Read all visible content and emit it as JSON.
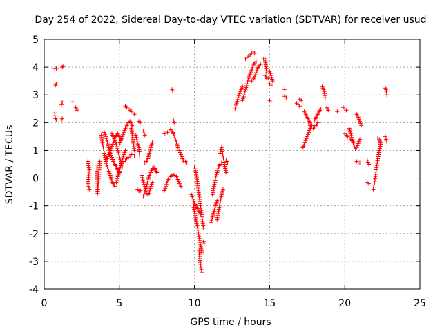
{
  "chart_data": {
    "type": "scatter",
    "title": "Day 254 of 2022, Sidereal Day-to-day VTEC variation (SDTVAR) for receiver usud",
    "xlabel": "GPS time / hours",
    "ylabel": "SDTVAR / TECUs",
    "xlim": [
      0,
      25
    ],
    "ylim": [
      -4,
      5
    ],
    "xticks": [
      0,
      5,
      10,
      15,
      20,
      25
    ],
    "yticks": [
      -4,
      -3,
      -2,
      -1,
      0,
      1,
      2,
      3,
      4,
      5
    ],
    "xtick_labels": [
      "0",
      "5",
      "10",
      "15",
      "20",
      "25"
    ],
    "ytick_labels": [
      "-4",
      "-3",
      "-2",
      "-1",
      "0",
      "1",
      "2",
      "3",
      "4",
      "5"
    ],
    "grid": true,
    "marker": "+",
    "color": "#ff0000",
    "segments": [
      {
        "x": [
          0.7,
          0.8
        ],
        "y": [
          3.95,
          3.95
        ]
      },
      {
        "x": [
          1.2,
          1.25
        ],
        "y": [
          4.0,
          4.02
        ]
      },
      {
        "x": [
          0.75,
          0.8
        ],
        "y": [
          3.35,
          3.4
        ]
      },
      {
        "x": [
          0.7,
          0.72,
          0.75,
          0.8
        ],
        "y": [
          2.35,
          2.25,
          2.15,
          2.1
        ]
      },
      {
        "x": [
          1.15,
          1.2
        ],
        "y": [
          2.65,
          2.75
        ]
      },
      {
        "x": [
          1.15,
          1.2
        ],
        "y": [
          2.1,
          2.15
        ]
      },
      {
        "x": [
          1.9
        ],
        "y": [
          2.75
        ]
      },
      {
        "x": [
          2.1,
          2.15,
          2.2
        ],
        "y": [
          2.55,
          2.5,
          2.45
        ]
      },
      {
        "x": [
          2.9,
          2.95,
          3.0,
          2.95,
          2.9,
          2.95,
          3.0
        ],
        "y": [
          0.6,
          0.45,
          0.3,
          -0.05,
          -0.2,
          -0.3,
          -0.4
        ]
      },
      {
        "x": [
          3.5,
          3.55,
          3.7
        ],
        "y": [
          0.4,
          -0.55,
          0.6
        ]
      },
      {
        "x": [
          3.8,
          3.9,
          4.0,
          4.1,
          4.2,
          4.3,
          4.4,
          4.5,
          4.6,
          4.7
        ],
        "y": [
          1.55,
          1.2,
          0.9,
          0.6,
          0.4,
          0.25,
          0.1,
          -0.1,
          -0.2,
          -0.3
        ]
      },
      {
        "x": [
          4.0,
          4.1,
          4.2,
          4.3,
          4.4,
          4.5,
          4.6,
          4.7,
          4.8,
          4.9,
          5.0
        ],
        "y": [
          1.65,
          1.5,
          1.3,
          1.1,
          0.9,
          0.75,
          0.6,
          0.5,
          0.4,
          0.3,
          0.2
        ]
      },
      {
        "x": [
          4.1,
          4.2,
          4.3,
          4.4,
          4.5,
          4.6,
          4.7,
          4.8,
          4.9,
          5.0,
          5.1
        ],
        "y": [
          0.6,
          0.7,
          0.85,
          1.0,
          1.15,
          1.3,
          1.45,
          1.55,
          1.6,
          1.5,
          1.4
        ]
      },
      {
        "x": [
          4.5,
          4.6,
          4.7,
          4.8,
          4.9,
          5.0,
          5.1,
          5.2
        ],
        "y": [
          1.6,
          1.5,
          1.35,
          1.2,
          1.0,
          0.8,
          0.6,
          0.4
        ]
      },
      {
        "x": [
          4.8,
          4.9,
          5.0,
          5.1,
          5.2,
          5.3,
          5.4
        ],
        "y": [
          -0.15,
          0.05,
          0.25,
          0.45,
          0.65,
          0.85,
          1.0
        ]
      },
      {
        "x": [
          5.0,
          5.1,
          5.2,
          5.3,
          5.4,
          5.5,
          5.6,
          5.7,
          5.8,
          5.9
        ],
        "y": [
          1.2,
          1.35,
          1.5,
          1.65,
          1.8,
          1.9,
          2.0,
          2.05,
          1.95,
          1.85
        ]
      },
      {
        "x": [
          5.3,
          5.4,
          5.5,
          5.6,
          5.7,
          5.8,
          5.9,
          6.0
        ],
        "y": [
          0.6,
          0.65,
          0.7,
          0.75,
          0.8,
          0.85,
          0.85,
          0.8
        ]
      },
      {
        "x": [
          5.4,
          5.5,
          5.6,
          5.7,
          5.8,
          5.9,
          6.0
        ],
        "y": [
          2.6,
          2.55,
          2.5,
          2.45,
          2.4,
          2.35,
          2.3
        ]
      },
      {
        "x": [
          5.8,
          5.85,
          5.9,
          5.95,
          6.0
        ],
        "y": [
          1.8,
          1.6,
          1.4,
          1.2,
          1.0
        ]
      },
      {
        "x": [
          6.1,
          6.2,
          6.3,
          6.35
        ],
        "y": [
          1.55,
          1.3,
          1.1,
          0.8
        ]
      },
      {
        "x": [
          6.2,
          6.3,
          6.35,
          6.4
        ],
        "y": [
          -0.4,
          -0.45,
          -0.5,
          -0.45
        ]
      },
      {
        "x": [
          6.3,
          6.4
        ],
        "y": [
          2.05,
          2.0
        ]
      },
      {
        "x": [
          6.5,
          6.6,
          6.7,
          6.8,
          6.9,
          7.0,
          7.1,
          7.2
        ],
        "y": [
          0.1,
          -0.15,
          -0.3,
          -0.55,
          -0.6,
          -0.5,
          -0.3,
          -0.15
        ]
      },
      {
        "x": [
          6.6,
          6.7,
          6.8,
          6.9,
          7.0,
          7.1,
          7.2,
          7.3,
          7.4,
          7.5
        ],
        "y": [
          -0.65,
          -0.5,
          -0.3,
          -0.1,
          0.1,
          0.2,
          0.35,
          0.4,
          0.3,
          0.2
        ]
      },
      {
        "x": [
          6.7,
          6.8,
          6.9,
          7.0,
          7.1,
          7.2
        ],
        "y": [
          0.55,
          0.6,
          0.7,
          0.9,
          1.1,
          1.3
        ]
      },
      {
        "x": [
          6.6,
          6.7
        ],
        "y": [
          1.7,
          1.55
        ]
      },
      {
        "x": [
          8.0,
          8.1,
          8.2,
          8.3,
          8.4,
          8.5,
          8.6,
          8.7,
          8.8,
          8.9
        ],
        "y": [
          1.6,
          1.62,
          1.65,
          1.7,
          1.75,
          1.7,
          1.6,
          1.45,
          1.3,
          1.1
        ]
      },
      {
        "x": [
          8.0,
          8.1,
          8.2,
          8.3,
          8.4,
          8.5,
          8.6,
          8.7,
          8.8,
          8.9,
          9.0,
          9.1
        ],
        "y": [
          -0.45,
          -0.3,
          -0.1,
          0.0,
          0.05,
          0.1,
          0.12,
          0.1,
          0.05,
          -0.05,
          -0.2,
          -0.3
        ]
      },
      {
        "x": [
          8.5,
          8.55
        ],
        "y": [
          3.2,
          3.15
        ]
      },
      {
        "x": [
          8.6,
          8.65,
          8.7
        ],
        "y": [
          2.1,
          2.0,
          1.95
        ]
      },
      {
        "x": [
          9.0,
          9.1,
          9.2,
          9.3
        ],
        "y": [
          1.0,
          0.85,
          0.7,
          0.6
        ]
      },
      {
        "x": [
          9.4,
          9.5
        ],
        "y": [
          0.6,
          0.55
        ]
      },
      {
        "x": [
          9.8,
          9.9,
          10.0,
          10.1,
          10.2,
          10.3,
          10.4
        ],
        "y": [
          -0.6,
          -0.75,
          -0.9,
          -1.0,
          -1.1,
          -1.2,
          -1.3
        ]
      },
      {
        "x": [
          9.9,
          10.0,
          10.1,
          10.2,
          10.3,
          10.4,
          10.5
        ],
        "y": [
          -0.9,
          -1.2,
          -1.5,
          -1.8,
          -2.1,
          -2.4,
          -2.7
        ]
      },
      {
        "x": [
          10.0,
          10.1,
          10.2,
          10.3,
          10.4,
          10.5,
          10.6
        ],
        "y": [
          0.4,
          0.2,
          -0.2,
          -0.6,
          -1.0,
          -1.4,
          -1.8
        ]
      },
      {
        "x": [
          10.3,
          10.35,
          10.4,
          10.45,
          10.5
        ],
        "y": [
          -2.6,
          -2.9,
          -3.1,
          -3.3,
          -3.4
        ]
      },
      {
        "x": [
          10.6,
          10.65
        ],
        "y": [
          -2.3,
          -2.35
        ]
      },
      {
        "x": [
          11.1,
          11.2,
          11.3,
          11.4,
          11.5
        ],
        "y": [
          -1.6,
          -1.4,
          -1.2,
          -1.0,
          -0.8
        ]
      },
      {
        "x": [
          11.2,
          11.3,
          11.4,
          11.5,
          11.6,
          11.7,
          11.8
        ],
        "y": [
          -0.6,
          -0.3,
          0.0,
          0.2,
          0.4,
          0.5,
          0.55
        ]
      },
      {
        "x": [
          11.5,
          11.6,
          11.7,
          11.8,
          11.9
        ],
        "y": [
          -1.5,
          -1.2,
          -0.9,
          -0.6,
          -0.4
        ]
      },
      {
        "x": [
          11.7,
          11.8,
          11.9,
          12.0,
          12.1
        ],
        "y": [
          0.9,
          1.1,
          0.8,
          0.5,
          0.2
        ]
      },
      {
        "x": [
          12.1,
          12.2
        ],
        "y": [
          0.65,
          0.55
        ]
      },
      {
        "x": [
          12.7,
          12.8,
          12.9,
          13.0,
          13.1,
          13.2
        ],
        "y": [
          2.5,
          2.7,
          2.9,
          3.05,
          3.2,
          3.3
        ]
      },
      {
        "x": [
          13.2,
          13.3,
          13.4,
          13.5,
          13.6,
          13.7,
          13.8,
          13.9,
          14.0,
          14.1
        ],
        "y": [
          2.8,
          3.0,
          3.2,
          3.4,
          3.6,
          3.75,
          3.9,
          4.05,
          4.15,
          4.2
        ]
      },
      {
        "x": [
          13.4,
          13.5,
          13.6,
          13.7,
          13.8,
          13.9,
          14.0
        ],
        "y": [
          4.3,
          4.35,
          4.4,
          4.45,
          4.5,
          4.55,
          4.5
        ]
      },
      {
        "x": [
          13.8,
          13.9,
          14.0,
          14.1,
          14.2,
          14.3,
          14.4
        ],
        "y": [
          3.5,
          3.55,
          3.65,
          3.8,
          3.95,
          4.05,
          4.1
        ]
      },
      {
        "x": [
          14.6,
          14.7,
          14.8
        ],
        "y": [
          4.3,
          4.3,
          3.8
        ]
      },
      {
        "x": [
          14.7,
          14.8,
          14.9
        ],
        "y": [
          3.7,
          3.6,
          3.6
        ]
      },
      {
        "x": [
          15.0,
          15.1,
          15.2
        ],
        "y": [
          3.85,
          3.7,
          3.5
        ]
      },
      {
        "x": [
          15.0,
          15.1
        ],
        "y": [
          3.4,
          3.35
        ]
      },
      {
        "x": [
          15.0,
          15.1
        ],
        "y": [
          2.8,
          2.75
        ]
      },
      {
        "x": [
          16.0
        ],
        "y": [
          3.2
        ]
      },
      {
        "x": [
          16.0,
          16.1
        ],
        "y": [
          2.95,
          2.9
        ]
      },
      {
        "x": [
          16.8,
          16.9,
          17.0
        ],
        "y": [
          2.7,
          2.65,
          2.6
        ]
      },
      {
        "x": [
          17.0,
          17.1
        ],
        "y": [
          2.85,
          2.8
        ]
      },
      {
        "x": [
          17.3,
          17.4,
          17.5,
          17.6,
          17.7
        ],
        "y": [
          2.4,
          2.3,
          2.2,
          2.1,
          2.0
        ]
      },
      {
        "x": [
          17.2,
          17.3,
          17.4,
          17.5,
          17.6,
          17.7,
          17.8
        ],
        "y": [
          1.1,
          1.2,
          1.35,
          1.5,
          1.65,
          1.8,
          1.9
        ]
      },
      {
        "x": [
          17.6,
          17.7,
          17.8,
          17.9,
          18.0,
          18.1,
          18.2
        ],
        "y": [
          1.95,
          1.9,
          1.85,
          1.8,
          1.85,
          1.9,
          2.0
        ]
      },
      {
        "x": [
          18.0,
          18.1,
          18.2,
          18.3,
          18.4
        ],
        "y": [
          2.1,
          2.2,
          2.3,
          2.4,
          2.5
        ]
      },
      {
        "x": [
          18.5,
          18.6,
          18.7
        ],
        "y": [
          3.3,
          3.2,
          2.9
        ]
      },
      {
        "x": [
          18.8,
          18.9
        ],
        "y": [
          2.55,
          2.45
        ]
      },
      {
        "x": [
          19.5
        ],
        "y": [
          2.4
        ]
      },
      {
        "x": [
          19.9,
          20.0,
          20.1
        ],
        "y": [
          2.55,
          2.5,
          2.45
        ]
      },
      {
        "x": [
          20.0,
          20.1,
          20.2,
          20.3,
          20.4,
          20.5
        ],
        "y": [
          1.6,
          1.55,
          1.5,
          1.45,
          1.4,
          1.35
        ]
      },
      {
        "x": [
          20.3,
          20.4,
          20.5,
          20.6,
          20.7,
          20.8,
          20.9,
          21.0
        ],
        "y": [
          1.8,
          1.6,
          1.4,
          1.2,
          1.05,
          1.1,
          1.25,
          1.4
        ]
      },
      {
        "x": [
          20.8,
          20.9,
          21.0,
          21.1
        ],
        "y": [
          2.3,
          2.2,
          2.05,
          1.9
        ]
      },
      {
        "x": [
          20.8,
          20.9,
          21.0
        ],
        "y": [
          0.6,
          0.55,
          0.55
        ]
      },
      {
        "x": [
          21.5,
          21.6
        ],
        "y": [
          0.65,
          0.5
        ]
      },
      {
        "x": [
          21.5,
          21.6
        ],
        "y": [
          -0.15,
          -0.2
        ]
      },
      {
        "x": [
          21.9,
          22.0,
          22.1,
          22.2,
          22.3,
          22.4
        ],
        "y": [
          -0.4,
          -0.1,
          0.3,
          0.7,
          1.0,
          1.3
        ]
      },
      {
        "x": [
          22.2,
          22.3,
          22.4
        ],
        "y": [
          1.45,
          1.4,
          1.2
        ]
      },
      {
        "x": [
          22.7,
          22.75,
          22.8
        ],
        "y": [
          1.5,
          1.4,
          1.3
        ]
      },
      {
        "x": [
          22.7,
          22.75,
          22.8
        ],
        "y": [
          3.25,
          3.2,
          3.0
        ]
      }
    ]
  }
}
